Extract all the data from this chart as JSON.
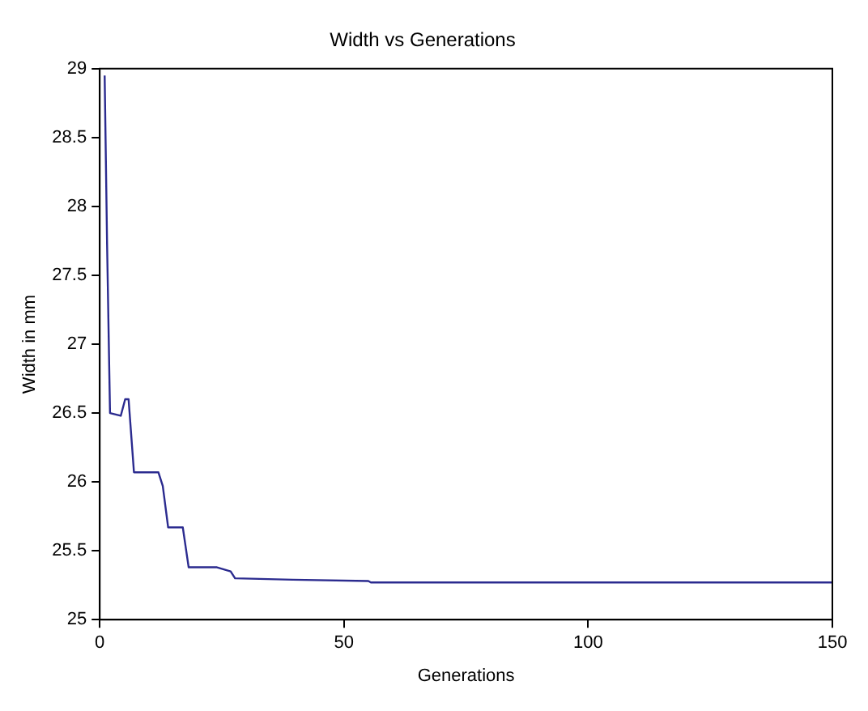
{
  "chart_data": {
    "type": "line",
    "title": "Width vs Generations",
    "xlabel": "Generations",
    "ylabel": "Width in mm",
    "xlim": [
      0,
      150
    ],
    "xticks": [
      0,
      50,
      100,
      150
    ],
    "ylim": [
      25,
      29
    ],
    "yticks": [
      25,
      25.5,
      26,
      26.5,
      27,
      27.5,
      28,
      28.5,
      29
    ],
    "grid": false,
    "legend": false,
    "marker": "none",
    "line_style": "solid",
    "series": [
      {
        "color": "#2b2b8f",
        "x": [
          1,
          1.5,
          2.1,
          4.3,
          5.2,
          5.9,
          7,
          12,
          12.9,
          14,
          17,
          18.2,
          24,
          26.8,
          27.7,
          39.5,
          55,
          55.5,
          150
        ],
        "values": [
          28.95,
          27.72,
          26.5,
          26.48,
          26.6,
          26.6,
          26.07,
          26.07,
          25.97,
          25.67,
          25.67,
          25.38,
          25.38,
          25.35,
          25.3,
          25.29,
          25.28,
          25.27,
          25.27
        ]
      }
    ]
  }
}
